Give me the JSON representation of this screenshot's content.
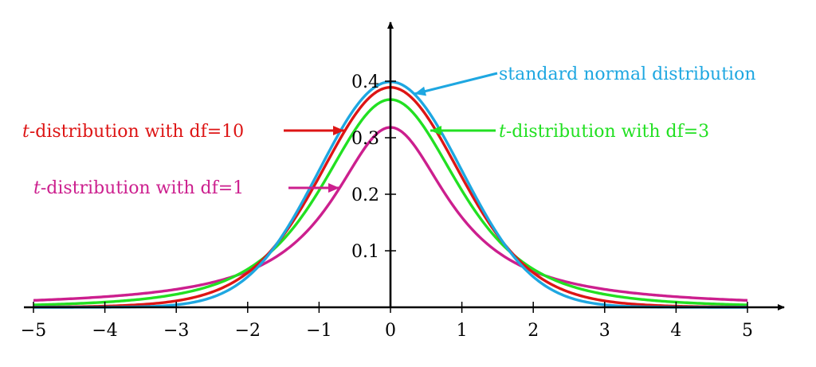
{
  "chart_data": {
    "type": "line",
    "x_range": [
      -5,
      5
    ],
    "y_range": [
      0,
      0.4
    ],
    "x_ticks": [
      -5,
      -4,
      -3,
      -2,
      -1,
      0,
      1,
      2,
      3,
      4,
      5
    ],
    "x_tick_labels": [
      "−5",
      "−4",
      "−3",
      "−2",
      "−1",
      "0",
      "1",
      "2",
      "3",
      "4",
      "5"
    ],
    "y_ticks": [
      0.1,
      0.2,
      0.3,
      0.4
    ],
    "y_tick_labels": [
      "0.1",
      "0.2",
      "0.3",
      "0.4"
    ],
    "grid": false,
    "series": [
      {
        "key": "t1",
        "dist": "t",
        "df": 1,
        "color": "#cc1f8e",
        "label_prefix": "t",
        "label_rest": "-distribution with df=1"
      },
      {
        "key": "t3",
        "dist": "t",
        "df": 3,
        "color": "#22e022",
        "label_prefix": "t",
        "label_rest": "-distribution with df=3"
      },
      {
        "key": "t10",
        "dist": "t",
        "df": 10,
        "color": "#dd1515",
        "label_prefix": "t",
        "label_rest": "-distribution with df=10"
      },
      {
        "key": "normal",
        "dist": "normal",
        "color": "#1ea7e1",
        "label_prefix": "",
        "label_rest": "standard normal distribution"
      }
    ]
  }
}
